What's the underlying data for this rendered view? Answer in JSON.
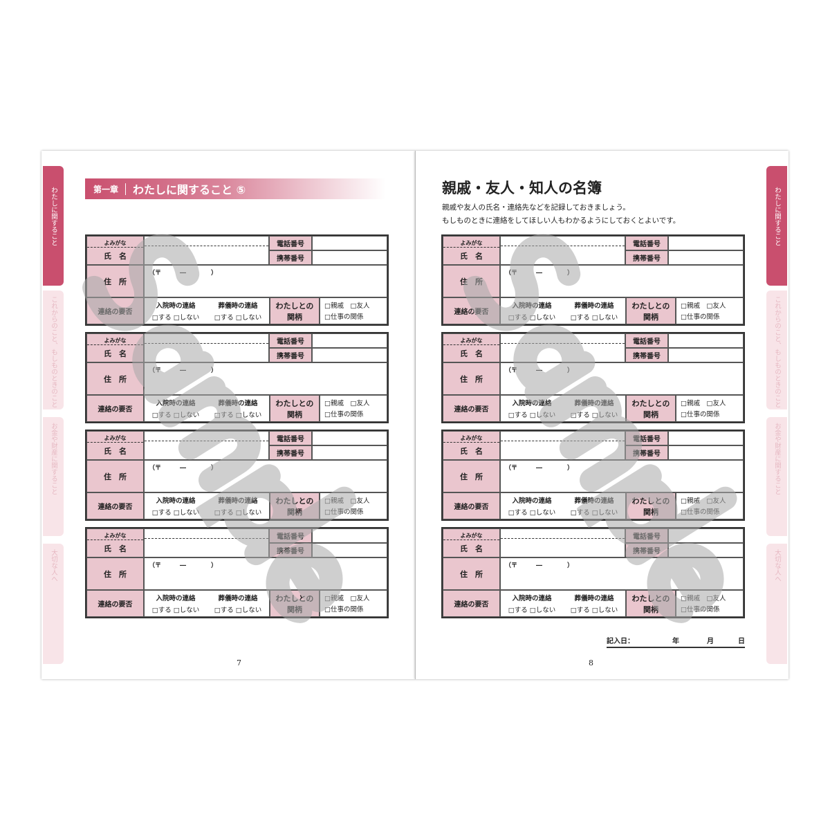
{
  "tabs": [
    "わたしに関すること",
    "これからのこと、もしものときのこと",
    "お金や財産に関すること",
    "大切な人へ"
  ],
  "left": {
    "chapter": "第一章",
    "chapter_title": "わたしに関すること ⑤",
    "page_number": "7"
  },
  "right": {
    "title": "親戚・友人・知人の名簿",
    "lines": [
      "親戚や友人の氏名・連絡先などを記録しておきましょう。",
      "もしものときに連絡をしてほしい人もわかるようにしておくとよいです。"
    ],
    "page_number": "8",
    "date": {
      "label": "記入日：",
      "year": "年",
      "month": "月",
      "day": "日"
    }
  },
  "form": {
    "furigana": "よみがな",
    "name": "氏　名",
    "phone": "電話番号",
    "mobile": "携帯番号",
    "address": "住　所",
    "postal": "（〒　　　―　　　　）",
    "contact": "連絡の要否",
    "hospital": "入院時の連絡",
    "funeral": "葬儀時の連絡",
    "yesno": "□する □しない",
    "relation": "わたしとの関柄",
    "rel1": "□親戚　□友人",
    "rel2": "□仕事の関係"
  },
  "forms_per_page": 4,
  "watermark": "Sample",
  "colors": {
    "accent": "#c94f6e",
    "label_fill": "#eac6ce",
    "tab_inactive": "#f8e4e8"
  }
}
